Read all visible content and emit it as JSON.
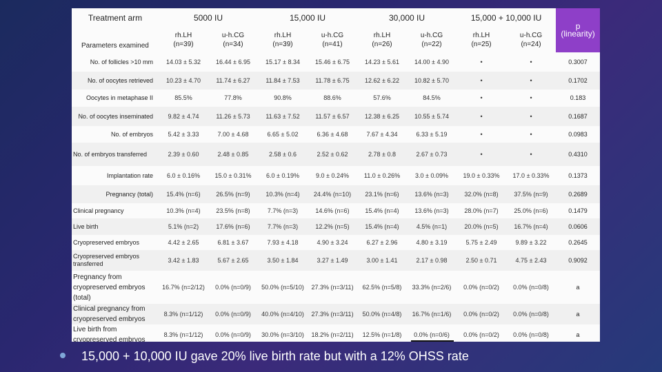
{
  "header": {
    "treatment_arm": "Treatment arm",
    "parameters_examined": "Parameters examined",
    "groups": [
      "5000 IU",
      "15,000 IU",
      "30,000 IU",
      "15,000 + 10,000 IU"
    ],
    "subgroups": [
      {
        "l1": "rh.LH",
        "l2": "(n=39)"
      },
      {
        "l1": "u-h.CG",
        "l2": "(n=34)"
      },
      {
        "l1": "rh.LH",
        "l2": "(n=39)"
      },
      {
        "l1": "u-h.CG",
        "l2": "(n=41)"
      },
      {
        "l1": "rh.LH",
        "l2": "(n=26)"
      },
      {
        "l1": "u-h.CG",
        "l2": "(n=22)"
      },
      {
        "l1": "rh.LH",
        "l2": "(n=25)"
      },
      {
        "l1": "u-h.CG",
        "l2": "(n=24)"
      }
    ],
    "p_label_1": "p",
    "p_label_2": "(linearity)"
  },
  "rows": [
    {
      "param": "No. of follicles >10 mm",
      "values": [
        "14.03 ± 5.32",
        "16.44 ± 6.95",
        "15.17 ± 8.34",
        "15.46 ± 6.75",
        "14.23 ± 5.61",
        "14.00 ± 4.90",
        "•",
        "•"
      ],
      "p": "0.3007"
    },
    {
      "param": "No. of oocytes retrieved",
      "values": [
        "10.23 ± 4.70",
        "11.74 ± 6.27",
        "11.84 ± 7.53",
        "11.78 ± 6.75",
        "12.62 ± 6.22",
        "10.82 ± 5.70",
        "•",
        "•"
      ],
      "p": "0.1702"
    },
    {
      "param": "Oocytes in metaphase II",
      "values": [
        "85.5%",
        "77.8%",
        "90.8%",
        "88.6%",
        "57.6%",
        "84.5%",
        "•",
        "•"
      ],
      "p": "0.183"
    },
    {
      "param": "No. of oocytes inseminated",
      "values": [
        "9.82 ± 4.74",
        "11.26 ± 5.73",
        "11.63 ± 7.52",
        "11.57 ± 6.57",
        "12.38 ± 6.25",
        "10.55 ± 5.74",
        "•",
        "•"
      ],
      "p": "0.1687"
    },
    {
      "param": "No. of embryos",
      "values": [
        "5.42 ± 3.33",
        "7.00 ± 4.68",
        "6.65 ± 5.02",
        "6.36 ± 4.68",
        "7.67 ± 4.34",
        "6.33 ± 5.19",
        "•",
        "•"
      ],
      "p": "0.0983"
    },
    {
      "param": "No. of embryos transferred",
      "values": [
        "2.39 ± 0.60",
        "2.48 ± 0.85",
        "2.58 ± 0.6",
        "2.52 ± 0.62",
        "2.78 ± 0.8",
        "2.67 ± 0.73",
        "•",
        "•"
      ],
      "p": "0.4310"
    },
    {
      "param": "Implantation rate",
      "values": [
        "6.0 ± 0.16%",
        "15.0 ± 0.31%",
        "6.0 ± 0.19%",
        "9.0 ± 0.24%",
        "11.0 ± 0.26%",
        "3.0 ± 0.09%",
        "19.0 ± 0.33%",
        "17.0 ± 0.33%"
      ],
      "p": "0.1373"
    },
    {
      "param": "Pregnancy (total)",
      "values": [
        "15.4% (n=6)",
        "26.5% (n=9)",
        "10.3% (n=4)",
        "24.4% (n=10)",
        "23.1% (n=6)",
        "13.6% (n=3)",
        "32.0% (n=8)",
        "37.5% (n=9)"
      ],
      "p": "0.2689"
    },
    {
      "param": "Clinical pregnancy",
      "values": [
        "10.3% (n=4)",
        "23.5% (n=8)",
        "7.7% (n=3)",
        "14.6% (n=6)",
        "15.4% (n=4)",
        "13.6% (n=3)",
        "28.0% (n=7)",
        "25.0% (n=6)"
      ],
      "p": "0.1479"
    },
    {
      "param": "Live birth",
      "values": [
        "5.1% (n=2)",
        "17.6% (n=6)",
        "7.7% (n=3)",
        "12.2% (n=5)",
        "15.4% (n=4)",
        "4.5% (n=1)",
        "20.0% (n=5)",
        "16.7% (n=4)"
      ],
      "p": "0.0606"
    },
    {
      "param": "Cryopreserved embryos",
      "values": [
        "4.42 ± 2.65",
        "6.81 ± 3.67",
        "7.93 ± 4.18",
        "4.90 ± 3.24",
        "6.27 ± 2.96",
        "4.80 ± 3.19",
        "5.75 ± 2.49",
        "9.89 ± 3.22"
      ],
      "p": "0.2645"
    },
    {
      "param": "Cryopreserved embryos transferred",
      "values": [
        "3.42 ± 1.83",
        "5.67 ± 2.65",
        "3.50 ± 1.84",
        "3.27 ± 1.49",
        "3.00 ± 1.41",
        "2.17 ± 0.98",
        "2.50 ± 0.71",
        "4.75 ± 2.43"
      ],
      "p": "0.9092"
    },
    {
      "param": "Pregnancy from cryopreserved embryos (total)",
      "values": [
        "16.7% (n=2/12)",
        "0.0% (n=0/9)",
        "50.0% (n=5/10)",
        "27.3% (n=3/11)",
        "62.5% (n=5/8)",
        "33.3% (n=2/6)",
        "0.0% (n=0/2)",
        "0.0% (n=0/8)"
      ],
      "p": "a"
    },
    {
      "param": "Clinical pregnancy from cryopreserved embryos",
      "values": [
        "8.3% (n=1/12)",
        "0.0% (n=0/9)",
        "40.0% (n=4/10)",
        "27.3% (n=3/11)",
        "50.0% (n=4/8)",
        "16.7% (n=1/6)",
        "0.0% (n=0/2)",
        "0.0% (n=0/8)"
      ],
      "p": "a"
    },
    {
      "param": "Live birth from cryopreserved embryos",
      "values": [
        "8.3% (n=1/12)",
        "0.0% (n=0/9)",
        "30.0% (n=3/10)",
        "18.2% (n=2/11)",
        "12.5% (n=1/8)",
        "0.0% (n=0/6)",
        "0.0% (n=0/2)",
        "0.0% (n=0/8)"
      ],
      "p": "a"
    }
  ],
  "caption": "15,000 + 10,000 IU gave 20% live birth rate but with a 12% OHSS rate",
  "colors": {
    "p_column": "#8e3fc8",
    "background": "#2a2770"
  }
}
